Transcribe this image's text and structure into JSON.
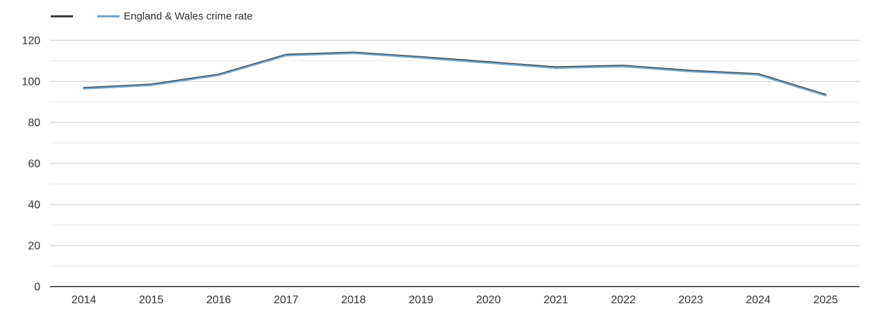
{
  "legend": {
    "items": [
      {
        "label": "",
        "color": "#3b3b3b"
      },
      {
        "label": "England & Wales crime rate",
        "color": "#74a3c7"
      }
    ]
  },
  "chart_data": {
    "type": "line",
    "title": "",
    "categories": [
      "2014",
      "2015",
      "2016",
      "2017",
      "2018",
      "2019",
      "2020",
      "2021",
      "2022",
      "2023",
      "2024",
      "2025"
    ],
    "series": [
      {
        "name": "",
        "color": "#3b3b3b",
        "values": [
          96.4,
          98.1,
          103,
          112.6,
          113.7,
          111.5,
          109,
          106.5,
          107.3,
          104.8,
          103.2,
          93.1
        ]
      },
      {
        "name": "England & Wales crime rate",
        "color": "#74a3c7",
        "values": [
          96.4,
          98.1,
          103,
          112.6,
          113.7,
          111.5,
          109,
          106.5,
          107.3,
          104.8,
          103.2,
          93.1
        ]
      }
    ],
    "xlabel": "",
    "ylabel": "",
    "ylim": [
      0,
      120
    ],
    "yticks": [
      0,
      20,
      40,
      60,
      80,
      100,
      120
    ],
    "grid": {
      "minor_step": 10,
      "major_step": 20
    },
    "legend_position": "top-left",
    "colors": {
      "major_grid": "#c9c9c9",
      "minor_grid": "#e9e9e9",
      "axis_line": "#262626",
      "tick_label": "#333333"
    }
  }
}
